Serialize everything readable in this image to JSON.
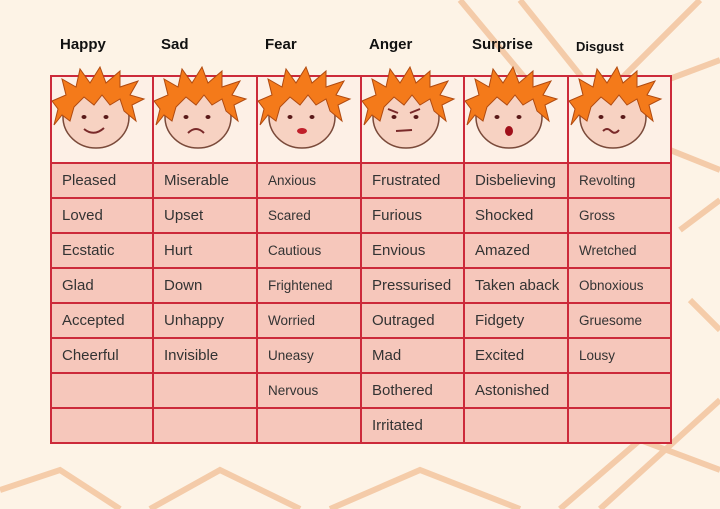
{
  "columns": [
    {
      "heading": "Happy",
      "expression": "smile",
      "words": [
        "Pleased",
        "Loved",
        "Ecstatic",
        "Glad",
        "Accepted",
        "Cheerful",
        "",
        ""
      ]
    },
    {
      "heading": "Sad",
      "expression": "frown",
      "words": [
        "Miserable",
        "Upset",
        "Hurt",
        "Down",
        "Unhappy",
        "Invisible",
        "",
        ""
      ]
    },
    {
      "heading": "Fear",
      "expression": "scared",
      "words": [
        "Anxious",
        "Scared",
        "Cautious",
        "Frightened",
        "Worried",
        "Uneasy",
        "Nervous",
        ""
      ]
    },
    {
      "heading": "Anger",
      "expression": "angry",
      "words": [
        "Frustrated",
        "Furious",
        "Envious",
        "Pressurised",
        "Outraged",
        "Mad",
        "Bothered",
        "Irritated"
      ]
    },
    {
      "heading": "Surprise",
      "expression": "surprised",
      "words": [
        "Disbelieving",
        "Shocked",
        "Amazed",
        "Taken aback",
        "Fidgety",
        "Excited",
        "Astonished",
        ""
      ]
    },
    {
      "heading": "Disgust",
      "expression": "disgusted",
      "words": [
        "Revolting",
        "Gross",
        "Wretched",
        "Obnoxious",
        "Gruesome",
        "Lousy",
        "",
        ""
      ]
    }
  ],
  "colors": {
    "grid": "#cc2a3a",
    "cell": "#f6c7bb",
    "hair": "#f47a1a",
    "skin": "#f7d2c2",
    "background": "#fdf3e6"
  }
}
